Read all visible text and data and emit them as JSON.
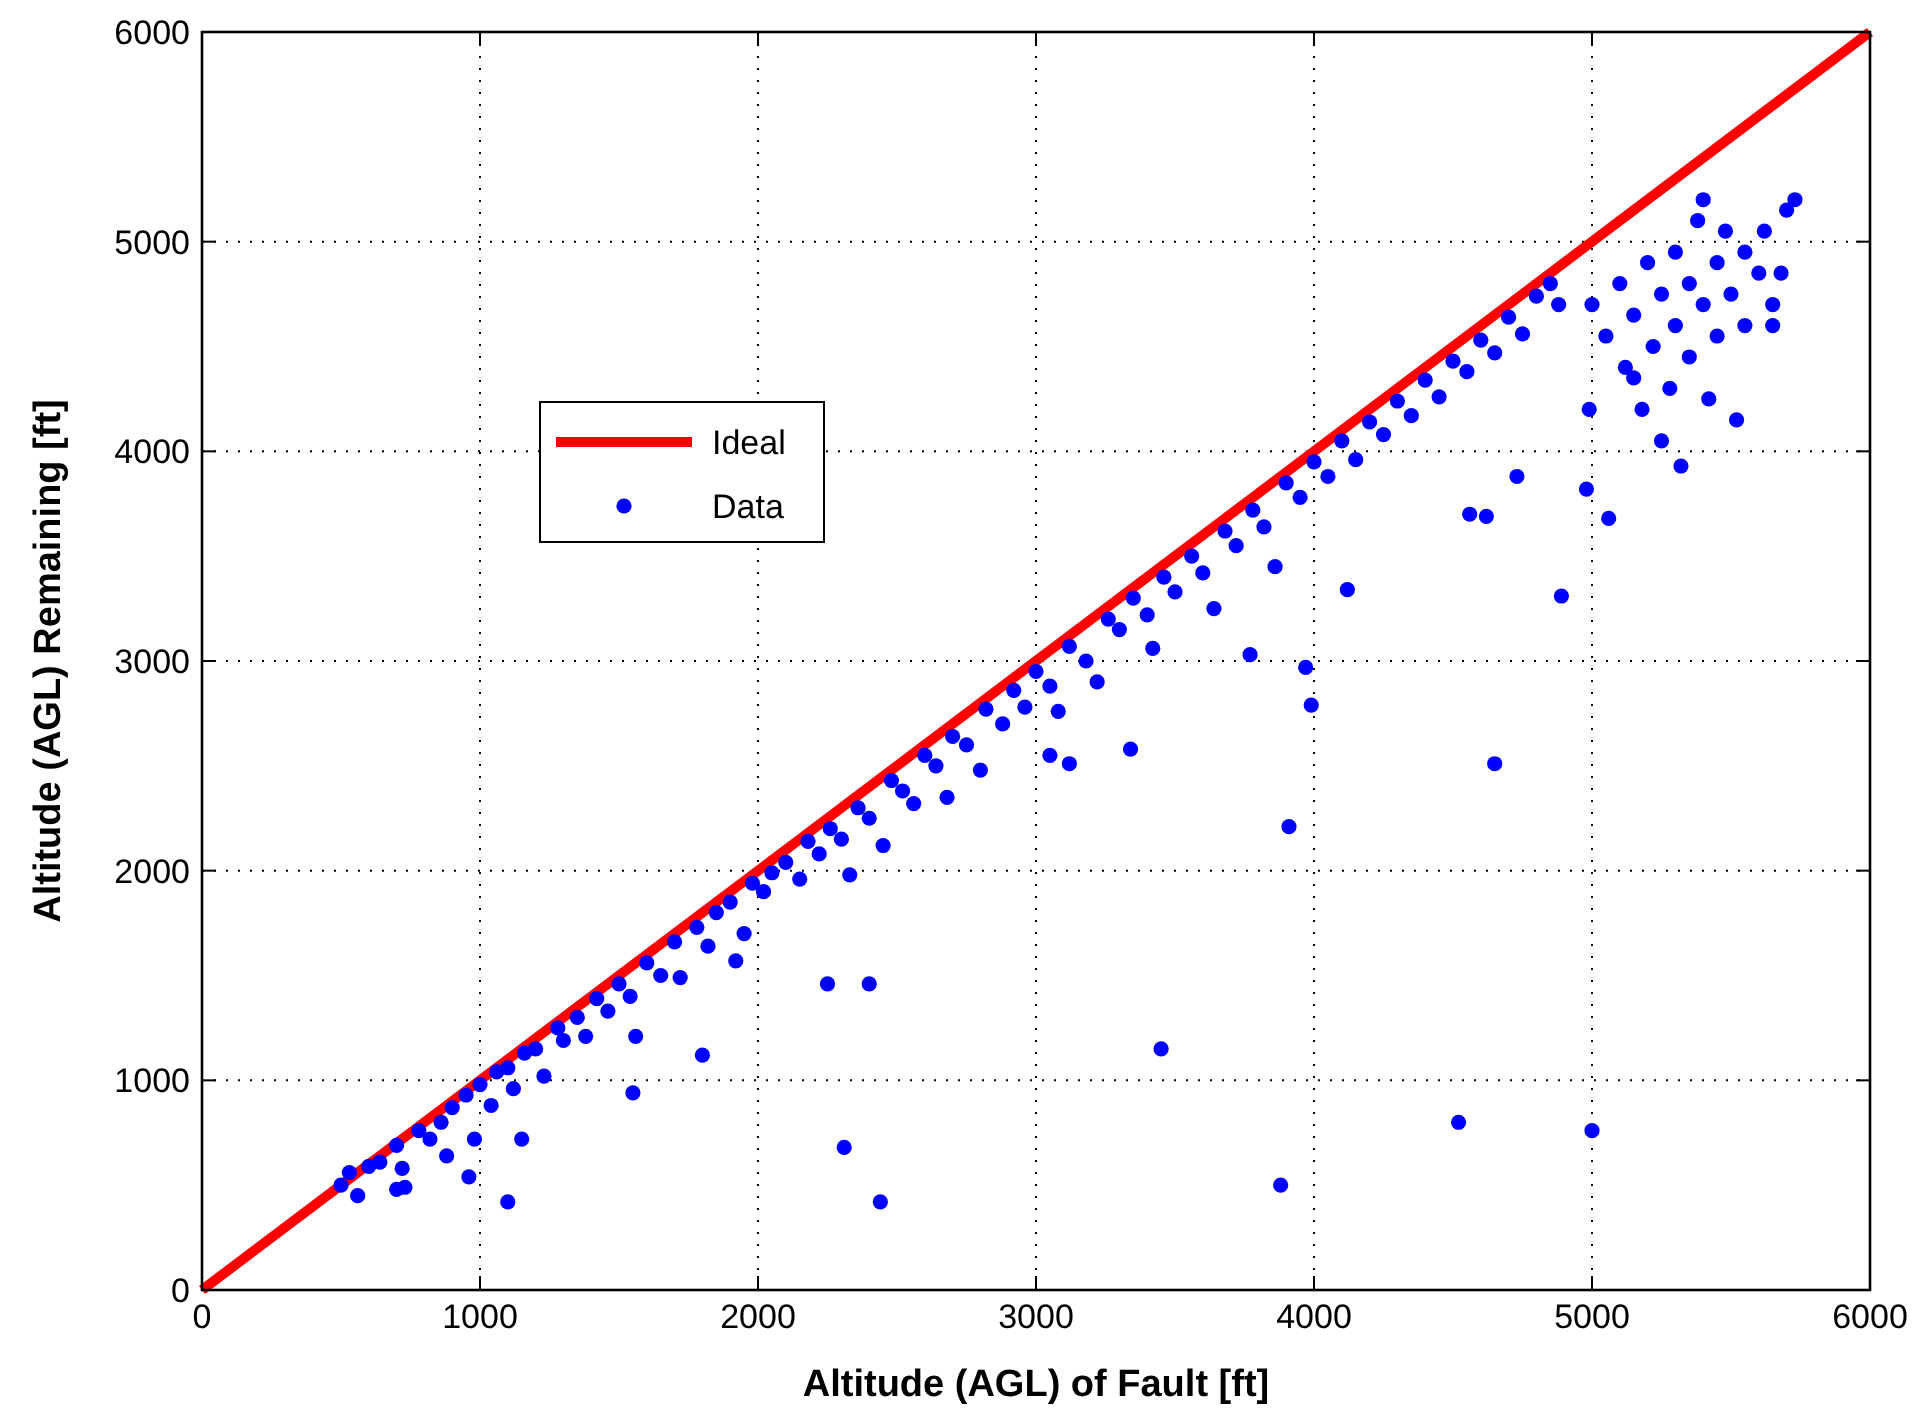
{
  "chart_data": {
    "type": "scatter",
    "xlabel": "Altitude (AGL) of Fault [ft]",
    "ylabel": "Altitude (AGL) Remaining [ft]",
    "xlim": [
      0,
      6000
    ],
    "ylim": [
      0,
      6000
    ],
    "xticks": [
      0,
      1000,
      2000,
      3000,
      4000,
      5000,
      6000
    ],
    "yticks": [
      0,
      1000,
      2000,
      3000,
      4000,
      5000,
      6000
    ],
    "grid": true,
    "legend": "top left",
    "marker": "circle",
    "series": [
      {
        "name": "Ideal",
        "type": "line",
        "color": "#ff0000",
        "marker": "none",
        "x": [
          0,
          6000
        ],
        "values": [
          0,
          6000
        ]
      },
      {
        "name": "Data",
        "type": "scatter",
        "color": "#0000ff",
        "x": [
          500,
          530,
          560,
          600,
          640,
          700,
          720,
          730,
          780,
          820,
          860,
          880,
          900,
          950,
          980,
          1000,
          1040,
          1060,
          1100,
          1120,
          1160,
          1200,
          1230,
          1280,
          1300,
          1350,
          1380,
          1420,
          1460,
          1500,
          1540,
          1560,
          1600,
          1650,
          1700,
          1720,
          1780,
          1820,
          1850,
          1900,
          1950,
          1980,
          2020,
          2050,
          2100,
          2150,
          2180,
          2220,
          2260,
          2300,
          2330,
          2360,
          2400,
          2450,
          2480,
          2520,
          2560,
          2600,
          2640,
          2680,
          2700,
          2750,
          2800,
          2820,
          2880,
          2920,
          2960,
          3000,
          3050,
          3080,
          3120,
          3180,
          3220,
          3260,
          3300,
          3350,
          3400,
          3420,
          3460,
          3500,
          3560,
          3600,
          3640,
          3680,
          3720,
          3780,
          3820,
          3860,
          3900,
          3950,
          4000,
          4050,
          4100,
          4150,
          4200,
          4250,
          4300,
          4350,
          4400,
          4450,
          4500,
          4550,
          4600,
          4650,
          4700,
          4750,
          4800,
          4850,
          4880,
          5000,
          5050,
          5100,
          5120,
          5150,
          5180,
          5200,
          5220,
          5250,
          5250,
          5280,
          5300,
          5300,
          5320,
          5350,
          5350,
          5380,
          5400,
          5420,
          5450,
          5450,
          5480,
          5500,
          5520,
          5550,
          5550,
          5600,
          5620,
          5650,
          5680,
          5700,
          5730,
          5650,
          5400,
          5150,
          4990,
          2310,
          2440,
          1100,
          3880,
          4520,
          5000,
          3450,
          3910,
          4650,
          3340,
          3120,
          3050,
          3770,
          3970,
          3990,
          4120,
          4890,
          4980,
          5060,
          4560,
          4620,
          4730,
          2250,
          2400,
          1800,
          1550,
          1920,
          960,
          1150,
          700
        ],
        "values": [
          500,
          560,
          450,
          590,
          610,
          690,
          580,
          490,
          760,
          720,
          800,
          640,
          870,
          930,
          720,
          980,
          880,
          1040,
          1060,
          960,
          1130,
          1150,
          1020,
          1250,
          1190,
          1300,
          1210,
          1390,
          1330,
          1460,
          1400,
          1210,
          1560,
          1500,
          1660,
          1490,
          1730,
          1640,
          1800,
          1850,
          1700,
          1940,
          1900,
          1990,
          2040,
          1960,
          2140,
          2080,
          2200,
          2150,
          1980,
          2300,
          2250,
          2120,
          2430,
          2380,
          2320,
          2550,
          2500,
          2350,
          2640,
          2600,
          2480,
          2770,
          2700,
          2860,
          2780,
          2950,
          2880,
          2760,
          3070,
          3000,
          2900,
          3200,
          3150,
          3300,
          3220,
          3060,
          3400,
          3330,
          3500,
          3420,
          3250,
          3620,
          3550,
          3720,
          3640,
          3450,
          3850,
          3780,
          3950,
          3880,
          4050,
          3960,
          4140,
          4080,
          4240,
          4170,
          4340,
          4260,
          4430,
          4380,
          4530,
          4470,
          4640,
          4560,
          4740,
          4800,
          4700,
          4700,
          4550,
          4800,
          4400,
          4650,
          4200,
          4900,
          4500,
          4050,
          4750,
          4300,
          4950,
          4600,
          3930,
          4800,
          4450,
          5100,
          4700,
          4250,
          4900,
          4550,
          5050,
          4750,
          4150,
          4950,
          4600,
          4850,
          5050,
          4700,
          4850,
          5150,
          5200,
          4600,
          5200,
          4350,
          4200,
          680,
          420,
          420,
          500,
          800,
          760,
          1150,
          2210,
          2510,
          2580,
          2510,
          2550,
          3030,
          2970,
          2790,
          3340,
          3310,
          3820,
          3680,
          3700,
          3690,
          3880,
          1460,
          1460,
          1120,
          940,
          1570,
          540,
          720,
          480
        ]
      }
    ]
  }
}
